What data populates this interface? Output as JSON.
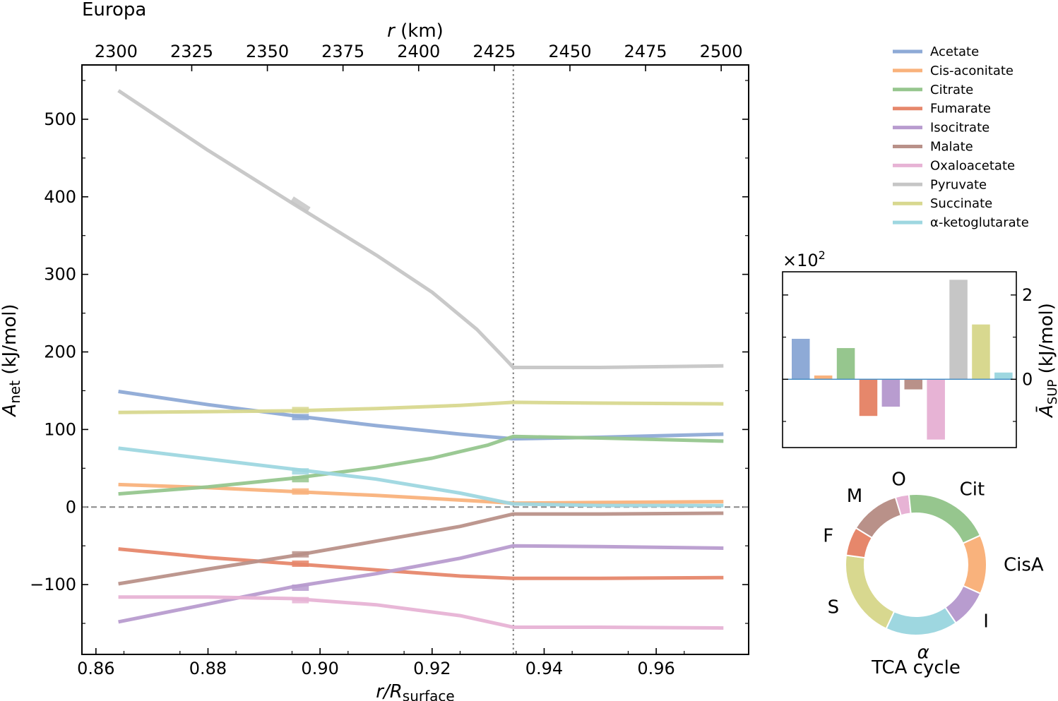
{
  "chart_data": [
    {
      "type": "line",
      "title": "Europa",
      "xlabel": "r/R",
      "xlabel_sub": "surface",
      "ylabel": "A",
      "ylabel_sub": "net",
      "ylabel_unit": "(kJ/mol)",
      "top_xlabel": "r",
      "top_xlabel_unit": "(km)",
      "xlim": [
        0.8575,
        0.9765
      ],
      "ylim": [
        -190,
        570
      ],
      "x_ticks": [
        0.86,
        0.88,
        0.9,
        0.92,
        0.94,
        0.96
      ],
      "x_tick_labels": [
        "0.86",
        "0.88",
        "0.90",
        "0.92",
        "0.94",
        "0.96"
      ],
      "y_ticks": [
        -100,
        0,
        100,
        200,
        300,
        400,
        500
      ],
      "y_tick_labels": [
        "−100",
        "0",
        "100",
        "200",
        "300",
        "400",
        "500"
      ],
      "top_ticks": [
        2300,
        2325,
        2350,
        2375,
        2400,
        2425,
        2450,
        2475,
        2500
      ],
      "top_tick_labels": [
        "2300",
        "2325",
        "2350",
        "2375",
        "2400",
        "2425",
        "2450",
        "2475",
        "2500"
      ],
      "top_axis_x_at_2300": 0.8636,
      "top_axis_x_at_2500": 0.9716,
      "vline_x": 0.9345,
      "hline_y": 0,
      "legend_position": "right-top",
      "series": [
        {
          "name": "Acetate",
          "color": "#8eaad6",
          "points": [
            [
              0.864,
              149
            ],
            [
              0.88,
              132
            ],
            [
              0.895,
              118
            ],
            [
              0.91,
              105
            ],
            [
              0.925,
              94
            ],
            [
              0.9345,
              88
            ],
            [
              0.95,
              90
            ],
            [
              0.972,
              94
            ]
          ],
          "segment": [
            [
              0.895,
              116
            ],
            [
              0.898,
              116
            ]
          ]
        },
        {
          "name": "Cis-aconitate",
          "color": "#f9b27c",
          "points": [
            [
              0.864,
              29
            ],
            [
              0.88,
              25
            ],
            [
              0.895,
              20
            ],
            [
              0.91,
              15
            ],
            [
              0.925,
              9
            ],
            [
              0.9345,
              5
            ],
            [
              0.95,
              6
            ],
            [
              0.972,
              7
            ]
          ],
          "segment": [
            [
              0.895,
              20
            ],
            [
              0.898,
              20
            ]
          ]
        },
        {
          "name": "Citrate",
          "color": "#96c68e",
          "points": [
            [
              0.864,
              17
            ],
            [
              0.88,
              26
            ],
            [
              0.895,
              37
            ],
            [
              0.91,
              51
            ],
            [
              0.92,
              63
            ],
            [
              0.93,
              80
            ],
            [
              0.9345,
              91
            ],
            [
              0.95,
              89
            ],
            [
              0.972,
              85
            ]
          ],
          "segment": [
            [
              0.895,
              36
            ],
            [
              0.898,
              36
            ]
          ]
        },
        {
          "name": "Fumarate",
          "color": "#e6876b",
          "points": [
            [
              0.864,
              -54
            ],
            [
              0.88,
              -65
            ],
            [
              0.895,
              -73
            ],
            [
              0.91,
              -81
            ],
            [
              0.925,
              -89
            ],
            [
              0.9345,
              -92
            ],
            [
              0.95,
              -92
            ],
            [
              0.972,
              -91
            ]
          ],
          "segment": [
            [
              0.895,
              -73
            ],
            [
              0.898,
              -73
            ]
          ]
        },
        {
          "name": "Isocitrate",
          "color": "#b89ccf",
          "points": [
            [
              0.864,
              -148
            ],
            [
              0.88,
              -125
            ],
            [
              0.895,
              -103
            ],
            [
              0.91,
              -86
            ],
            [
              0.925,
              -66
            ],
            [
              0.9345,
              -50
            ],
            [
              0.95,
              -51
            ],
            [
              0.972,
              -53
            ]
          ],
          "segment": [
            [
              0.895,
              -104
            ],
            [
              0.898,
              -104
            ]
          ]
        },
        {
          "name": "Malate",
          "color": "#b99189",
          "points": [
            [
              0.864,
              -99
            ],
            [
              0.88,
              -80
            ],
            [
              0.895,
              -63
            ],
            [
              0.91,
              -44
            ],
            [
              0.925,
              -25
            ],
            [
              0.9345,
              -9
            ],
            [
              0.95,
              -9
            ],
            [
              0.972,
              -8
            ]
          ],
          "segment": [
            [
              0.895,
              -61
            ],
            [
              0.898,
              -61
            ]
          ]
        },
        {
          "name": "Oxaloacetate",
          "color": "#e7b3d5",
          "points": [
            [
              0.864,
              -116
            ],
            [
              0.88,
              -116
            ],
            [
              0.895,
              -118
            ],
            [
              0.91,
              -126
            ],
            [
              0.925,
              -140
            ],
            [
              0.9345,
              -155
            ],
            [
              0.95,
              -155
            ],
            [
              0.972,
              -156
            ]
          ],
          "segment": [
            [
              0.895,
              -120
            ],
            [
              0.898,
              -120
            ]
          ]
        },
        {
          "name": "Pyruvate",
          "color": "#c6c6c6",
          "points": [
            [
              0.864,
              537
            ],
            [
              0.88,
              460
            ],
            [
              0.895,
              392
            ],
            [
              0.91,
              325
            ],
            [
              0.92,
              277
            ],
            [
              0.928,
              229
            ],
            [
              0.932,
              199
            ],
            [
              0.9345,
              180
            ],
            [
              0.95,
              180
            ],
            [
              0.972,
              182
            ]
          ],
          "segment": [
            [
              0.895,
              397
            ],
            [
              0.898,
              383
            ]
          ]
        },
        {
          "name": "Succinate",
          "color": "#d8d88f",
          "points": [
            [
              0.864,
              122
            ],
            [
              0.88,
              123
            ],
            [
              0.895,
              124
            ],
            [
              0.91,
              127
            ],
            [
              0.925,
              131
            ],
            [
              0.9345,
              135
            ],
            [
              0.95,
              134
            ],
            [
              0.972,
              133
            ]
          ],
          "segment": [
            [
              0.895,
              125
            ],
            [
              0.898,
              125
            ]
          ]
        },
        {
          "name": "α-ketoglutarate",
          "color": "#9ed7e0",
          "points": [
            [
              0.864,
              76
            ],
            [
              0.88,
              62
            ],
            [
              0.895,
              49
            ],
            [
              0.91,
              36
            ],
            [
              0.925,
              18
            ],
            [
              0.9345,
              4
            ],
            [
              0.95,
              2
            ],
            [
              0.972,
              2
            ]
          ],
          "segment": [
            [
              0.895,
              46
            ],
            [
              0.898,
              46
            ]
          ]
        }
      ]
    },
    {
      "type": "bar",
      "ylabel": "Ā",
      "ylabel_sub": "SUP",
      "ylabel_unit": "(kJ/mol)",
      "scale_label": "×10",
      "scale_exponent": "2",
      "ylim": [
        -1.62,
        2.55
      ],
      "y_ticks": [
        0,
        2
      ],
      "y_tick_labels": [
        "0",
        "2"
      ],
      "categories": [
        "Acetate",
        "Cis-aconitate",
        "Citrate",
        "Fumarate",
        "Isocitrate",
        "Malate",
        "Oxaloacetate",
        "Pyruvate",
        "Succinate",
        "α-ketoglutarate"
      ],
      "values": [
        0.96,
        0.09,
        0.74,
        -0.87,
        -0.65,
        -0.24,
        -1.43,
        2.36,
        1.3,
        0.16
      ],
      "colors": [
        "#8eaad6",
        "#f9b27c",
        "#96c68e",
        "#e6876b",
        "#b89ccf",
        "#b99189",
        "#e7b3d5",
        "#c6c6c6",
        "#d8d88f",
        "#9ed7e0"
      ]
    },
    {
      "type": "pie",
      "title": "TCA cycle",
      "labels": [
        "S",
        "F",
        "M",
        "O",
        "Cit",
        "CisA",
        "I",
        "α"
      ],
      "values": [
        0.196,
        0.064,
        0.112,
        0.03,
        0.192,
        0.131,
        0.085,
        0.16
      ],
      "colors": [
        "#d8d88f",
        "#e6876b",
        "#b99189",
        "#e7b3d5",
        "#96c68e",
        "#f9b27c",
        "#b89ccf",
        "#9ed7e0"
      ]
    }
  ]
}
